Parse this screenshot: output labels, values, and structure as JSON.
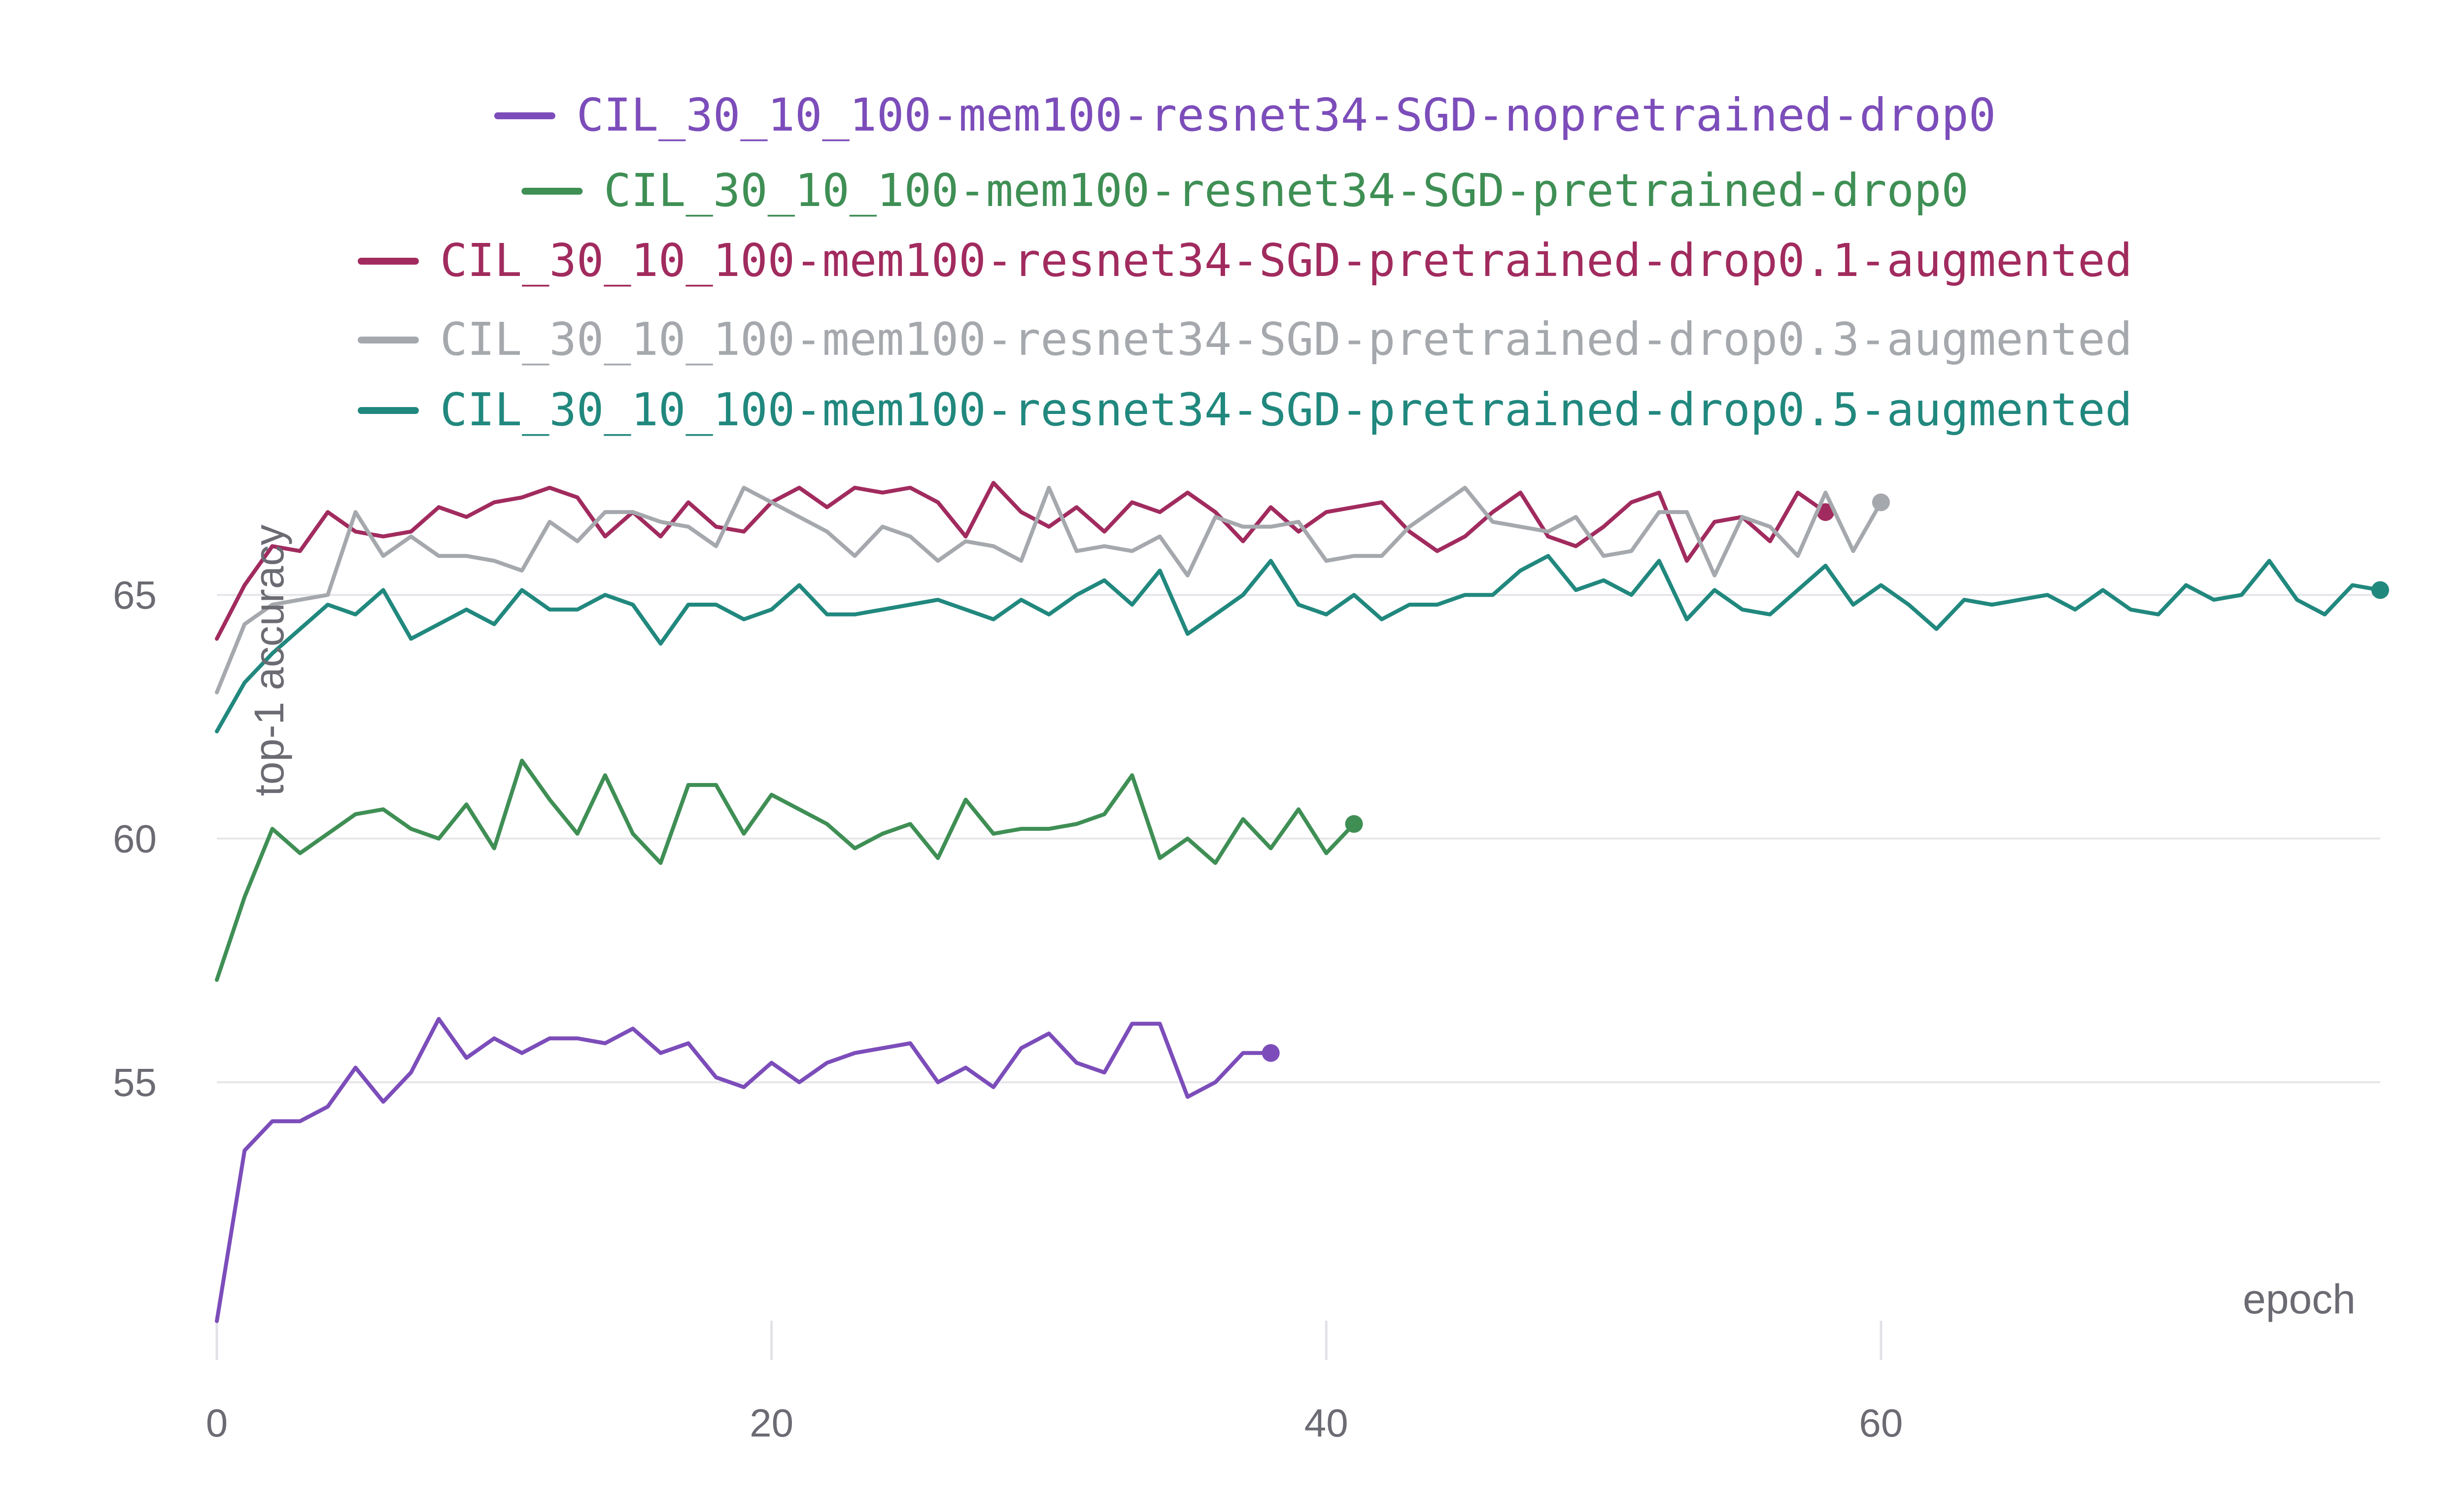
{
  "chart_data": {
    "type": "line",
    "xlabel": "epoch",
    "ylabel": "top-1 accuracy",
    "xlim": [
      0,
      78
    ],
    "ylim": [
      49.5,
      67.5
    ],
    "xticks": [
      0,
      20,
      40,
      60
    ],
    "yticks": [
      55,
      60,
      65
    ],
    "grid": "horizontal",
    "legend_position": "top-center",
    "series": [
      {
        "name": "CIL_30_10_100-mem100-resnet34-SGD-nopretrained-drop0",
        "color": "#7c4dba",
        "x": [
          0,
          1,
          2,
          3,
          4,
          5,
          6,
          7,
          8,
          9,
          10,
          11,
          12,
          13,
          14,
          15,
          16,
          17,
          18,
          19,
          20,
          21,
          22,
          23,
          24,
          25,
          26,
          27,
          28,
          29,
          30,
          31,
          32,
          33,
          34,
          35,
          36,
          37,
          38
        ],
        "values": [
          50.1,
          53.6,
          54.2,
          54.2,
          54.5,
          55.3,
          54.6,
          55.2,
          56.3,
          55.5,
          55.9,
          55.6,
          55.9,
          55.9,
          55.8,
          56.1,
          55.6,
          55.8,
          55.1,
          54.9,
          55.4,
          55.0,
          55.4,
          55.6,
          55.7,
          55.8,
          55.0,
          55.3,
          54.9,
          55.7,
          56.0,
          55.4,
          55.2,
          56.2,
          56.2,
          54.7,
          55.0,
          55.6,
          55.6
        ]
      },
      {
        "name": "CIL_30_10_100-mem100-resnet34-SGD-pretrained-drop0",
        "color": "#3f8f55",
        "x": [
          0,
          1,
          2,
          3,
          4,
          5,
          6,
          7,
          8,
          9,
          10,
          11,
          12,
          13,
          14,
          15,
          16,
          17,
          18,
          19,
          20,
          21,
          22,
          23,
          24,
          25,
          26,
          27,
          28,
          29,
          30,
          31,
          32,
          33,
          34,
          35,
          36,
          37,
          38,
          39,
          40,
          41
        ],
        "values": [
          57.1,
          58.8,
          60.2,
          59.7,
          60.1,
          60.5,
          60.6,
          60.2,
          60.0,
          60.7,
          59.8,
          61.6,
          60.8,
          60.1,
          61.3,
          60.1,
          59.5,
          61.1,
          61.1,
          60.1,
          60.9,
          60.6,
          60.3,
          59.8,
          60.1,
          60.3,
          59.6,
          60.8,
          60.1,
          60.2,
          60.2,
          60.3,
          60.5,
          61.3,
          59.6,
          60.0,
          59.5,
          60.4,
          59.8,
          60.6,
          59.7,
          60.3
        ]
      },
      {
        "name": "CIL_30_10_100-mem100-resnet34-SGD-pretrained-drop0.1-augmented",
        "color": "#a12b5e",
        "x": [
          0,
          1,
          2,
          3,
          4,
          5,
          6,
          7,
          8,
          9,
          10,
          11,
          12,
          13,
          14,
          15,
          16,
          17,
          18,
          19,
          20,
          21,
          22,
          23,
          24,
          25,
          26,
          27,
          28,
          29,
          30,
          31,
          32,
          33,
          34,
          35,
          36,
          37,
          38,
          39,
          40,
          41,
          42,
          43,
          44,
          45,
          46,
          47,
          48,
          49,
          50,
          51,
          52,
          53,
          54,
          55,
          56,
          57,
          58
        ],
        "values": [
          64.1,
          65.2,
          66.0,
          65.9,
          66.7,
          66.3,
          66.2,
          66.3,
          66.8,
          66.6,
          66.9,
          67.0,
          67.2,
          67.0,
          66.2,
          66.7,
          66.2,
          66.9,
          66.4,
          66.3,
          66.9,
          67.2,
          66.8,
          67.2,
          67.1,
          67.2,
          66.9,
          66.2,
          67.3,
          66.7,
          66.4,
          66.8,
          66.3,
          66.9,
          66.7,
          67.1,
          66.7,
          66.1,
          66.8,
          66.3,
          66.7,
          66.8,
          66.9,
          66.3,
          65.9,
          66.2,
          66.7,
          67.1,
          66.2,
          66.0,
          66.4,
          66.9,
          67.1,
          65.7,
          66.5,
          66.6,
          66.1,
          67.1,
          66.7
        ]
      },
      {
        "name": "CIL_30_10_100-mem100-resnet34-SGD-pretrained-drop0.3-augmented",
        "color": "#a5a8ad",
        "x": [
          0,
          1,
          2,
          3,
          4,
          5,
          6,
          7,
          8,
          9,
          10,
          11,
          12,
          13,
          14,
          15,
          16,
          17,
          18,
          19,
          20,
          21,
          22,
          23,
          24,
          25,
          26,
          27,
          28,
          29,
          30,
          31,
          32,
          33,
          34,
          35,
          36,
          37,
          38,
          39,
          40,
          41,
          42,
          43,
          44,
          45,
          46,
          47,
          48,
          49,
          50,
          51,
          52,
          53,
          54,
          55,
          56,
          57,
          58,
          59,
          60
        ],
        "values": [
          63.0,
          64.4,
          64.8,
          64.9,
          65.0,
          66.7,
          65.8,
          66.2,
          65.8,
          65.8,
          65.7,
          65.5,
          66.5,
          66.1,
          66.7,
          66.7,
          66.5,
          66.4,
          66.0,
          67.2,
          66.9,
          66.6,
          66.3,
          65.8,
          66.4,
          66.2,
          65.7,
          66.1,
          66.0,
          65.7,
          67.2,
          65.9,
          66.0,
          65.9,
          66.2,
          65.4,
          66.6,
          66.4,
          66.4,
          66.5,
          65.7,
          65.8,
          65.8,
          66.4,
          66.8,
          67.2,
          66.5,
          66.4,
          66.3,
          66.6,
          65.8,
          65.9,
          66.7,
          66.7,
          65.4,
          66.6,
          66.4,
          65.8,
          67.1,
          65.9,
          66.9
        ]
      },
      {
        "name": "CIL_30_10_100-mem100-resnet34-SGD-pretrained-drop0.5-augmented",
        "color": "#21887e",
        "x": [
          0,
          1,
          2,
          3,
          4,
          5,
          6,
          7,
          8,
          9,
          10,
          11,
          12,
          13,
          14,
          15,
          16,
          17,
          18,
          19,
          20,
          21,
          22,
          23,
          24,
          25,
          26,
          27,
          28,
          29,
          30,
          31,
          32,
          33,
          34,
          35,
          36,
          37,
          38,
          39,
          40,
          41,
          42,
          43,
          44,
          45,
          46,
          47,
          48,
          49,
          50,
          51,
          52,
          53,
          54,
          55,
          56,
          57,
          58,
          59,
          60,
          61,
          62,
          63,
          64,
          65,
          66,
          67,
          68,
          69,
          70,
          71,
          72,
          73,
          74,
          75,
          76,
          77,
          78
        ],
        "values": [
          62.2,
          63.2,
          63.8,
          64.3,
          64.8,
          64.6,
          65.1,
          64.1,
          64.4,
          64.7,
          64.4,
          65.1,
          64.7,
          64.7,
          65.0,
          64.8,
          64.0,
          64.8,
          64.8,
          64.5,
          64.7,
          65.2,
          64.6,
          64.6,
          64.7,
          64.8,
          64.9,
          64.7,
          64.5,
          64.9,
          64.6,
          65.0,
          65.3,
          64.8,
          65.5,
          64.2,
          64.6,
          65.0,
          65.7,
          64.8,
          64.6,
          65.0,
          64.5,
          64.8,
          64.8,
          65.0,
          65.0,
          65.5,
          65.8,
          65.1,
          65.3,
          65.0,
          65.7,
          64.5,
          65.1,
          64.7,
          64.6,
          65.1,
          65.6,
          64.8,
          65.2,
          64.8,
          64.3,
          64.9,
          64.8,
          64.9,
          65.0,
          64.7,
          65.1,
          64.7,
          64.6,
          65.2,
          64.9,
          65.0,
          65.7,
          64.9,
          64.6,
          65.2,
          65.1
        ]
      }
    ]
  }
}
